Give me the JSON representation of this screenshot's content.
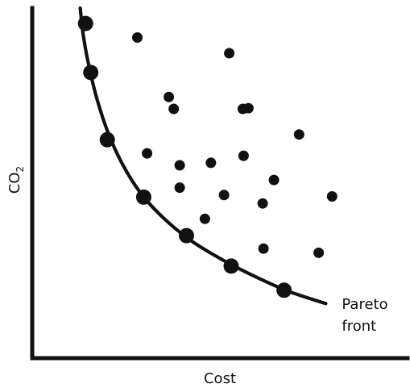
{
  "chart_data": {
    "type": "scatter",
    "xlabel": "Cost",
    "ylabel": "CO₂",
    "ylabel_main": "CO",
    "ylabel_sub": "2",
    "xlim": [
      0,
      100
    ],
    "ylim": [
      0,
      100
    ],
    "grid": false,
    "pareto_label_line1": "Pareto",
    "pareto_label_line2": "front",
    "series": [
      {
        "name": "Pareto front",
        "role": "front-points",
        "points": [
          {
            "x": 14.2,
            "y": 95.6
          },
          {
            "x": 15.6,
            "y": 81.6
          },
          {
            "x": 20.0,
            "y": 62.4
          },
          {
            "x": 29.7,
            "y": 46.0
          },
          {
            "x": 41.1,
            "y": 35.0
          },
          {
            "x": 53.0,
            "y": 26.3
          },
          {
            "x": 67.1,
            "y": 19.4
          }
        ]
      },
      {
        "role": "dominated-points",
        "points": [
          {
            "x": 28.0,
            "y": 91.6
          },
          {
            "x": 52.5,
            "y": 87.1
          },
          {
            "x": 36.4,
            "y": 74.6
          },
          {
            "x": 37.7,
            "y": 71.2
          },
          {
            "x": 56.1,
            "y": 71.2
          },
          {
            "x": 57.6,
            "y": 71.4
          },
          {
            "x": 71.1,
            "y": 63.9
          },
          {
            "x": 30.6,
            "y": 58.5
          },
          {
            "x": 39.3,
            "y": 55.1
          },
          {
            "x": 47.6,
            "y": 55.8
          },
          {
            "x": 56.3,
            "y": 57.8
          },
          {
            "x": 39.3,
            "y": 48.7
          },
          {
            "x": 51.1,
            "y": 46.6
          },
          {
            "x": 64.4,
            "y": 50.9
          },
          {
            "x": 61.4,
            "y": 44.2
          },
          {
            "x": 79.9,
            "y": 46.2
          },
          {
            "x": 46.0,
            "y": 39.8
          },
          {
            "x": 61.6,
            "y": 31.3
          },
          {
            "x": 76.3,
            "y": 30.1
          }
        ]
      }
    ],
    "front_curve": [
      {
        "x": 12.8,
        "y": 100
      },
      {
        "x": 13.5,
        "y": 93
      },
      {
        "x": 14.8,
        "y": 85
      },
      {
        "x": 17.0,
        "y": 75
      },
      {
        "x": 20.0,
        "y": 65
      },
      {
        "x": 24.0,
        "y": 55.5
      },
      {
        "x": 29.0,
        "y": 47
      },
      {
        "x": 35.0,
        "y": 40
      },
      {
        "x": 42.0,
        "y": 33.8
      },
      {
        "x": 50.0,
        "y": 28.5
      },
      {
        "x": 59.0,
        "y": 23.5
      },
      {
        "x": 68.0,
        "y": 19.2
      },
      {
        "x": 78.2,
        "y": 15.6
      }
    ]
  }
}
